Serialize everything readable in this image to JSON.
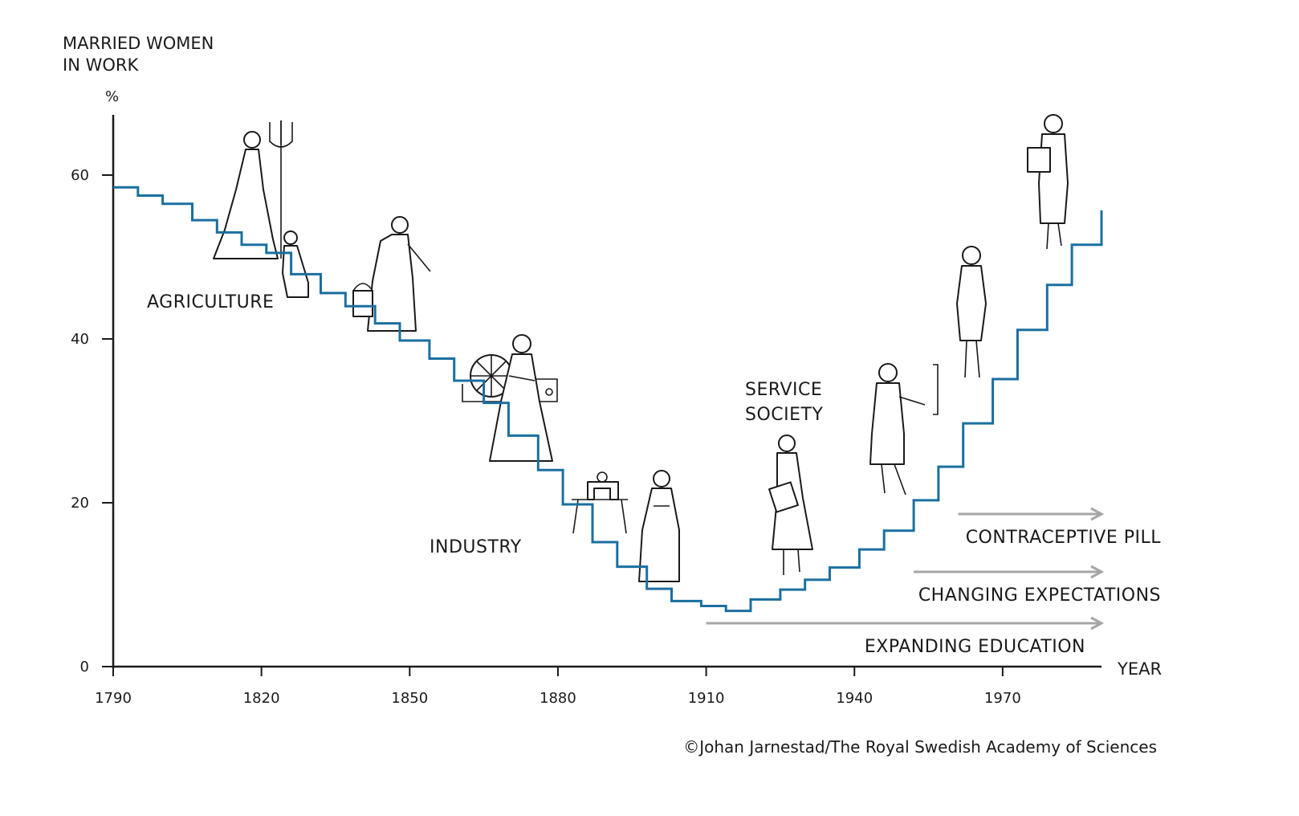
{
  "chart_data": {
    "type": "line",
    "step": true,
    "title": "",
    "ylabel": [
      "MARRIED WOMEN",
      "IN WORK"
    ],
    "yunit": "%",
    "xlabel": "YEAR",
    "xlim": [
      1790,
      1990
    ],
    "ylim": [
      0,
      68
    ],
    "xticks": [
      1790,
      1820,
      1850,
      1880,
      1910,
      1940,
      1970
    ],
    "yticks": [
      0,
      20,
      40,
      60
    ],
    "series": [
      {
        "name": "Married women in work (%)",
        "color": "#1a6fa0",
        "x": [
          1790,
          1795,
          1800,
          1806,
          1811,
          1816,
          1821,
          1826,
          1832,
          1837,
          1843,
          1848,
          1854,
          1859,
          1865,
          1870,
          1876,
          1881,
          1887,
          1892,
          1898,
          1903,
          1909,
          1914,
          1919,
          1925,
          1930,
          1935,
          1941,
          1946,
          1952,
          1957,
          1962,
          1968,
          1973,
          1979,
          1984,
          1990
        ],
        "y": [
          58.5,
          57.5,
          56.5,
          54.5,
          53,
          51.5,
          50.5,
          47.9,
          45.6,
          44,
          41.9,
          39.8,
          37.6,
          34.9,
          32.2,
          28.2,
          24,
          19.8,
          15.2,
          12.2,
          9.5,
          8,
          7.4,
          6.8,
          8.2,
          9.4,
          10.6,
          12.1,
          14.3,
          16.6,
          20.3,
          24.4,
          29.7,
          35.1,
          41.1,
          46.6,
          51.5,
          55.7
        ]
      }
    ],
    "eras": [
      "AGRICULTURE",
      "INDUSTRY",
      [
        "SERVICE",
        "SOCIETY"
      ]
    ],
    "drivers": [
      {
        "label": "CONTRACEPTIVE PILL",
        "start": 1961,
        "end": 1990
      },
      {
        "label": "CHANGING EXPECTATIONS",
        "start": 1952,
        "end": 1990
      },
      {
        "label": "EXPANDING EDUCATION",
        "start": 1910,
        "end": 1990
      }
    ],
    "credit": "©Johan Jarnestad/The Royal Swedish Academy of Sciences",
    "colors": {
      "line": "#1a6fa0",
      "arrow": "#a6a6a6",
      "axis": "#1a1a1a",
      "text": "#1a1a1a"
    }
  }
}
